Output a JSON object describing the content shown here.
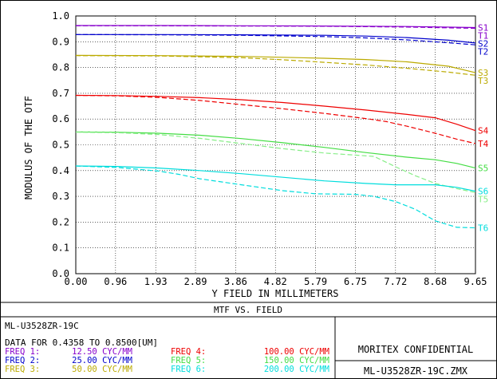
{
  "chart_data": {
    "type": "line",
    "title": "MTF VS. FIELD",
    "xlabel": "Y FIELD IN MILLIMETERS",
    "ylabel": "MODULUS OF THE OTF",
    "xlim": [
      0.0,
      9.65
    ],
    "ylim": [
      0.0,
      1.0
    ],
    "x_ticks": [
      "0.00",
      "0.96",
      "1.93",
      "2.89",
      "3.86",
      "4.82",
      "5.79",
      "6.75",
      "7.72",
      "8.68",
      "9.65"
    ],
    "y_ticks": [
      "0.0",
      "0.1",
      "0.2",
      "0.3",
      "0.4",
      "0.5",
      "0.6",
      "0.7",
      "0.8",
      "0.9",
      "1.0"
    ],
    "series": [
      {
        "name": "S1",
        "color": "#8800cc",
        "style": "solid",
        "x": [
          0,
          2,
          4,
          6,
          8,
          9.65
        ],
        "y": [
          0.963,
          0.963,
          0.962,
          0.961,
          0.959,
          0.955
        ]
      },
      {
        "name": "T1",
        "color": "#8800cc",
        "style": "dashed",
        "x": [
          0,
          2,
          4,
          6,
          8,
          9.65
        ],
        "y": [
          0.962,
          0.962,
          0.961,
          0.96,
          0.957,
          0.952
        ]
      },
      {
        "name": "S2",
        "color": "#0000cc",
        "style": "solid",
        "x": [
          0,
          2,
          4,
          6,
          7,
          8,
          9,
          9.65
        ],
        "y": [
          0.928,
          0.928,
          0.927,
          0.925,
          0.922,
          0.916,
          0.906,
          0.895
        ]
      },
      {
        "name": "T2",
        "color": "#0000cc",
        "style": "dashed",
        "x": [
          0,
          2,
          4,
          6,
          7,
          8,
          9,
          9.65
        ],
        "y": [
          0.928,
          0.927,
          0.925,
          0.92,
          0.915,
          0.907,
          0.896,
          0.888
        ]
      },
      {
        "name": "S3",
        "color": "#bbaa00",
        "style": "solid",
        "x": [
          0,
          2,
          4,
          6,
          7,
          8,
          9,
          9.65
        ],
        "y": [
          0.847,
          0.846,
          0.843,
          0.836,
          0.831,
          0.822,
          0.805,
          0.78
        ]
      },
      {
        "name": "T3",
        "color": "#bbaa00",
        "style": "dashed",
        "x": [
          0,
          2,
          4,
          5,
          6,
          7,
          8,
          9,
          9.65
        ],
        "y": [
          0.846,
          0.845,
          0.838,
          0.83,
          0.82,
          0.81,
          0.797,
          0.782,
          0.77
        ]
      },
      {
        "name": "S4",
        "color": "#ee0000",
        "style": "solid",
        "x": [
          0,
          1,
          2,
          3,
          4,
          5,
          6,
          7,
          8,
          8.68,
          9.2,
          9.65
        ],
        "y": [
          0.692,
          0.691,
          0.688,
          0.683,
          0.675,
          0.664,
          0.65,
          0.635,
          0.618,
          0.605,
          0.58,
          0.555
        ]
      },
      {
        "name": "T4",
        "color": "#ee0000",
        "style": "dashed",
        "x": [
          0,
          1,
          2,
          3,
          4,
          5,
          6,
          7,
          7.5,
          8,
          8.68,
          9.2,
          9.65
        ],
        "y": [
          0.692,
          0.69,
          0.684,
          0.672,
          0.656,
          0.64,
          0.622,
          0.602,
          0.59,
          0.572,
          0.545,
          0.522,
          0.505
        ]
      },
      {
        "name": "S5",
        "color": "#44dd44",
        "style": "solid",
        "x": [
          0,
          1,
          2,
          3,
          4,
          5,
          6,
          7,
          8,
          8.68,
          9.2,
          9.65
        ],
        "y": [
          0.55,
          0.549,
          0.545,
          0.537,
          0.524,
          0.508,
          0.49,
          0.47,
          0.452,
          0.442,
          0.428,
          0.41
        ]
      },
      {
        "name": "T5",
        "color": "#88ee88",
        "style": "dashed",
        "x": [
          0,
          1,
          2,
          3,
          4,
          5,
          6,
          6.75,
          7.2,
          7.72,
          8.2,
          8.68,
          9.2,
          9.65
        ],
        "y": [
          0.549,
          0.547,
          0.54,
          0.525,
          0.505,
          0.485,
          0.468,
          0.46,
          0.455,
          0.415,
          0.38,
          0.35,
          0.33,
          0.315
        ]
      },
      {
        "name": "S6",
        "color": "#00dddd",
        "style": "solid",
        "x": [
          0,
          1,
          2,
          3,
          4,
          5,
          6,
          7,
          7.72,
          8.2,
          8.68,
          9.2,
          9.65
        ],
        "y": [
          0.418,
          0.416,
          0.41,
          0.4,
          0.388,
          0.374,
          0.36,
          0.35,
          0.345,
          0.345,
          0.345,
          0.335,
          0.32
        ]
      },
      {
        "name": "T6",
        "color": "#00dddd",
        "style": "dashed",
        "x": [
          0,
          1,
          2,
          2.5,
          3,
          4,
          5,
          5.79,
          6.75,
          7.2,
          7.72,
          8.2,
          8.68,
          9.2,
          9.65
        ],
        "y": [
          0.418,
          0.412,
          0.398,
          0.385,
          0.368,
          0.345,
          0.322,
          0.31,
          0.308,
          0.3,
          0.28,
          0.25,
          0.205,
          0.18,
          0.178
        ]
      }
    ]
  },
  "panel": {
    "title": "MTF VS. FIELD",
    "lens_name": "ML-U3528ZR-19C",
    "wavelength_line": "DATA FOR 0.4358 TO 0.8500[UM]",
    "confidential": "MORITEX CONFIDENTIAL",
    "filename": "ML-U3528ZR-19C.ZMX",
    "freqs": [
      {
        "label": "FREQ 1:",
        "value": "12.50 CYC/MM",
        "color": "#8800cc"
      },
      {
        "label": "FREQ 2:",
        "value": "25.00 CYC/MM",
        "color": "#0000cc"
      },
      {
        "label": "FREQ 3:",
        "value": "50.00 CYC/MM",
        "color": "#bbaa00"
      },
      {
        "label": "FREQ 4:",
        "value": "100.00 CYC/MM",
        "color": "#ee0000"
      },
      {
        "label": "FREQ 5:",
        "value": "150.00 CYC/MM",
        "color": "#44dd44"
      },
      {
        "label": "FREQ 6:",
        "value": "200.00 CYC/MM",
        "color": "#00dddd"
      }
    ]
  }
}
